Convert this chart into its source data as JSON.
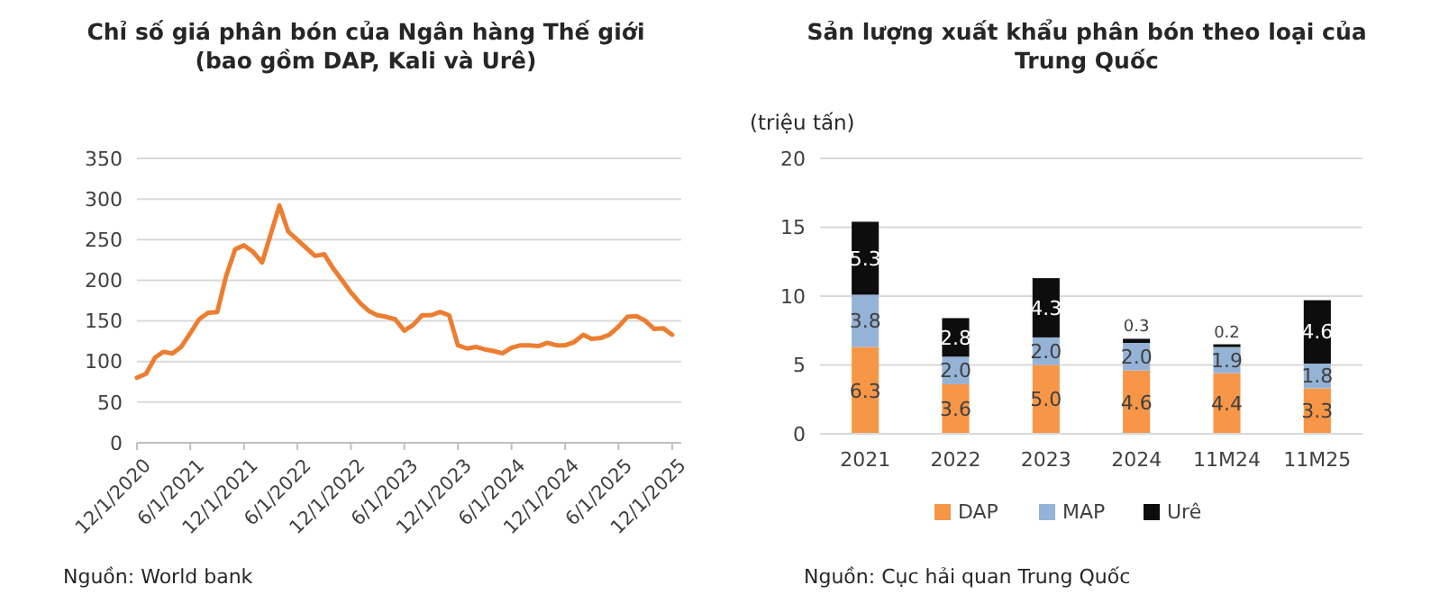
{
  "chart_data": [
    {
      "type": "line",
      "title": "Chỉ số giá phân bón của Ngân hàng Thế giới\n(bao gồm DAP, Kali và Urê)",
      "series": [
        {
          "color": "#ed7d31",
          "x": [
            "2020-12-01",
            "2021-01-01",
            "2021-02-01",
            "2021-03-01",
            "2021-04-01",
            "2021-05-01",
            "2021-06-01",
            "2021-07-01",
            "2021-08-01",
            "2021-09-01",
            "2021-10-01",
            "2021-11-01",
            "2021-12-01",
            "2022-01-01",
            "2022-02-01",
            "2022-03-01",
            "2022-04-01",
            "2022-05-01",
            "2022-06-01",
            "2022-07-01",
            "2022-08-01",
            "2022-09-01",
            "2022-10-01",
            "2022-11-01",
            "2022-12-01",
            "2023-01-01",
            "2023-02-01",
            "2023-03-01",
            "2023-04-01",
            "2023-05-01",
            "2023-06-01",
            "2023-07-01",
            "2023-08-01",
            "2023-09-01",
            "2023-10-01",
            "2023-11-01",
            "2023-12-01",
            "2024-01-01",
            "2024-02-01",
            "2024-03-01",
            "2024-04-01",
            "2024-05-01",
            "2024-06-01",
            "2024-07-01",
            "2024-08-01",
            "2024-09-01",
            "2024-10-01",
            "2024-11-01",
            "2024-12-01",
            "2025-01-01",
            "2025-02-01",
            "2025-03-01",
            "2025-04-01",
            "2025-05-01",
            "2025-06-01",
            "2025-07-01",
            "2025-08-01",
            "2025-09-01",
            "2025-10-01",
            "2025-11-01",
            "2025-12-01"
          ],
          "values": [
            80,
            85,
            105,
            112,
            110,
            118,
            135,
            152,
            160,
            161,
            205,
            238,
            243,
            235,
            222,
            255,
            292,
            260,
            250,
            240,
            230,
            232,
            215,
            200,
            185,
            172,
            162,
            157,
            155,
            152,
            138,
            145,
            157,
            157,
            161,
            157,
            120,
            116,
            118,
            115,
            113,
            110,
            117,
            120,
            120,
            119,
            123,
            120,
            120,
            124,
            133,
            128,
            129,
            133,
            143,
            155,
            156,
            150,
            140,
            141,
            133
          ]
        }
      ],
      "xlim": [
        "2020-12-01",
        "2026-01-01"
      ],
      "xticks": [
        {
          "value": "2020-12-01",
          "label": "12/1/2020"
        },
        {
          "value": "2021-06-01",
          "label": "6/1/2021"
        },
        {
          "value": "2021-12-01",
          "label": "12/1/2021"
        },
        {
          "value": "2022-06-01",
          "label": "6/1/2022"
        },
        {
          "value": "2022-12-01",
          "label": "12/1/2022"
        },
        {
          "value": "2023-06-01",
          "label": "6/1/2023"
        },
        {
          "value": "2023-12-01",
          "label": "12/1/2023"
        },
        {
          "value": "2024-06-01",
          "label": "6/1/2024"
        },
        {
          "value": "2024-12-01",
          "label": "12/1/2024"
        },
        {
          "value": "2025-06-01",
          "label": "6/1/2025"
        },
        {
          "value": "2025-12-01",
          "label": "12/1/2025"
        }
      ],
      "ylim": [
        0,
        350
      ],
      "yticks": [
        0,
        50,
        100,
        150,
        200,
        250,
        300,
        350
      ],
      "grid": "y",
      "annotations": [
        "Nguồn: World bank"
      ]
    },
    {
      "type": "bar",
      "stacked": true,
      "title": "Sản lượng xuất khẩu phân bón theo loại của\nTrung Quốc",
      "ylabel": "(triệu tấn)",
      "categories": [
        "2021",
        "2022",
        "2023",
        "2024",
        "11M24",
        "11M25"
      ],
      "series": [
        {
          "name": "DAP",
          "color": "#f79646",
          "values": [
            6.3,
            3.6,
            5.0,
            4.6,
            4.4,
            3.3
          ],
          "value_labels": [
            "6.3",
            "3.6",
            "5.0",
            "4.6",
            "4.4",
            "3.3"
          ]
        },
        {
          "name": "MAP",
          "color": "#95b3d7",
          "values": [
            3.8,
            2.0,
            2.0,
            2.0,
            1.9,
            1.8
          ],
          "value_labels": [
            "3.8",
            "2.0",
            "2.0",
            "2.0",
            "1.9",
            "1.8"
          ]
        },
        {
          "name": "Urê",
          "color": "#0d0d0d",
          "values": [
            5.3,
            2.8,
            4.3,
            0.3,
            0.2,
            4.6
          ],
          "value_labels": [
            "5.3",
            "2.8",
            "4.3",
            "0.3",
            "0.2",
            "4.6"
          ]
        }
      ],
      "ylim": [
        0,
        20
      ],
      "yticks": [
        0,
        5,
        10,
        15,
        20
      ],
      "grid": "y",
      "legend": "bottom",
      "annotations": [
        "Nguồn: Cục hải quan Trung Quốc"
      ]
    }
  ]
}
